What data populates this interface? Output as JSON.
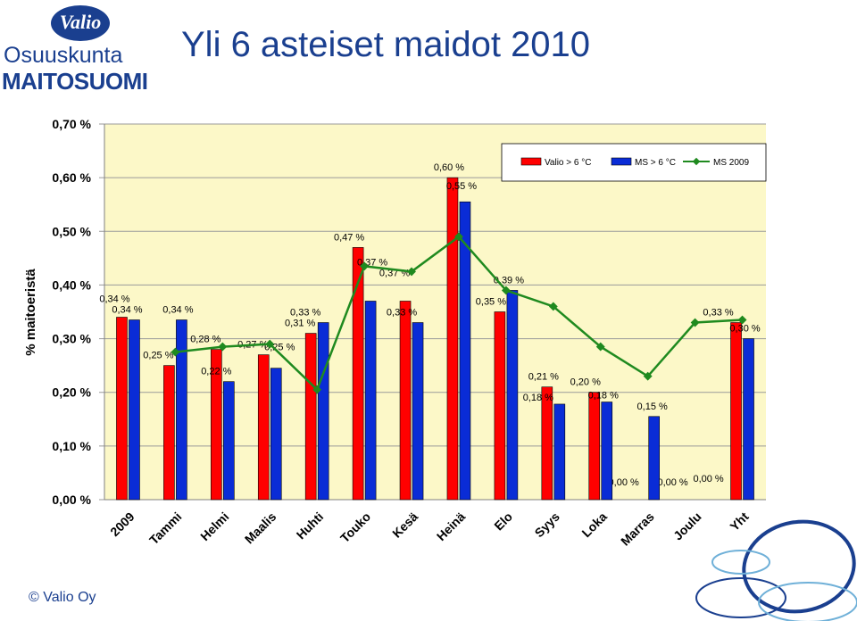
{
  "header": {
    "logo_word": "Valio",
    "logo_line1": "Osuuskunta",
    "logo_line2": "MAITOSUOMI",
    "title": "Yli 6 asteiset maidot 2010"
  },
  "footer": {
    "copyright": "© Valio Oy"
  },
  "colors": {
    "background": "#ffffff",
    "plot_bg": "#fcf8c8",
    "valio": "#ff0000",
    "ms": "#0a2cd6",
    "ms2009": "#1f8a1f",
    "brand": "#1a3f8f"
  },
  "chart_data": {
    "type": "bar",
    "title": "",
    "xlabel": "",
    "ylabel": "% maitoeristä",
    "ylim": [
      0,
      0.7
    ],
    "yticks": [
      "0,00 %",
      "0,10 %",
      "0,20 %",
      "0,30 %",
      "0,40 %",
      "0,50 %",
      "0,60 %",
      "0,70 %"
    ],
    "legend_position": "top-right",
    "categories": [
      "2009",
      "Tammi",
      "Helmi",
      "Maalis",
      "Huhti",
      "Touko",
      "Kesä",
      "Heinä",
      "Elo",
      "Syys",
      "Loka",
      "Marras",
      "Joulu",
      "Yht"
    ],
    "series": [
      {
        "name": "Valio > 6 °C",
        "kind": "bar",
        "values": [
          0.34,
          0.25,
          0.28,
          0.27,
          0.31,
          0.47,
          0.37,
          0.6,
          0.35,
          0.21,
          0.2,
          0.0,
          0.0,
          0.33
        ],
        "labels": [
          "0,34 %",
          "0,25 %",
          "0,28 %",
          "0,27 %",
          "0,31 %",
          "0,47 %",
          "0,37 %",
          "0,60 %",
          "0,35 %",
          "0,21 %",
          "0,20 %",
          "0,00 %",
          "0,00 %",
          "0,33 %"
        ]
      },
      {
        "name": "MS > 6 °C",
        "kind": "bar",
        "values": [
          0.335,
          0.335,
          0.22,
          0.245,
          0.33,
          0.37,
          0.33,
          0.555,
          0.39,
          0.178,
          0.182,
          0.155,
          null,
          0.3
        ],
        "labels": [
          "0,34 %",
          "0,34 %",
          "0,22 %",
          "0,25 %",
          "0,33 %",
          "0,37 %",
          "0,33 %",
          "0,55 %",
          "0,39 %",
          "0,18 %",
          "0,18 %",
          "0,15 %",
          "0,00 %",
          "0,30 %"
        ]
      },
      {
        "name": "MS 2009",
        "kind": "line",
        "values": [
          null,
          0.275,
          0.285,
          0.29,
          0.205,
          0.435,
          0.425,
          0.49,
          0.39,
          0.36,
          0.285,
          0.23,
          0.33,
          0.335
        ]
      }
    ]
  }
}
